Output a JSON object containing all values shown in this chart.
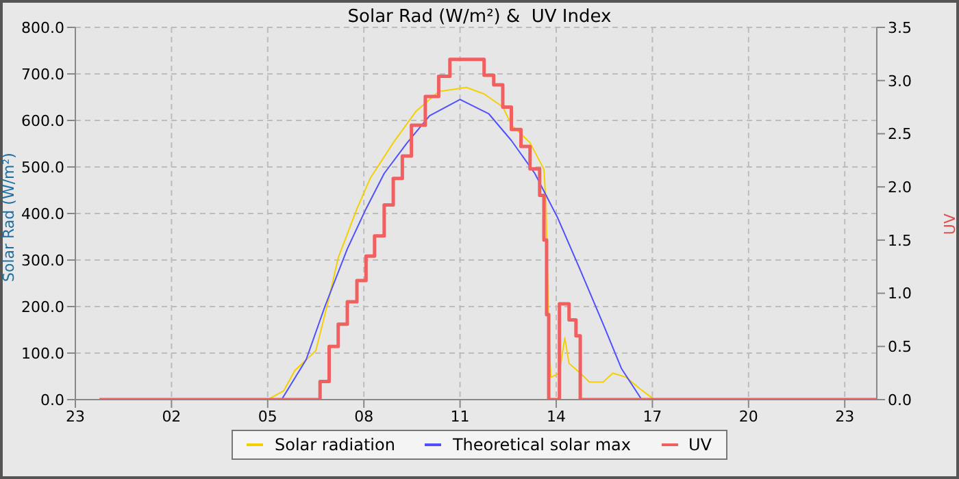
{
  "chart_data": {
    "type": "line",
    "title": "Solar Rad (W/m²) &  UV Index",
    "ylabel": "Solar Rad (W/m²)",
    "y2label": "UV",
    "xlim": [
      "--05-31T23:00",
      "--06-02T00:00"
    ],
    "xticks": [
      {
        "value": "--05-31T23:00",
        "label": "23"
      },
      {
        "value": "--06-01T02:00",
        "label": "02"
      },
      {
        "value": "--06-01T05:00",
        "label": "05"
      },
      {
        "value": "--06-01T08:00",
        "label": "08"
      },
      {
        "value": "--06-01T11:00",
        "label": "11"
      },
      {
        "value": "--06-01T14:00",
        "label": "14"
      },
      {
        "value": "--06-01T17:00",
        "label": "17"
      },
      {
        "value": "--06-01T20:00",
        "label": "20"
      },
      {
        "value": "--06-01T23:00",
        "label": "23"
      }
    ],
    "ylim": [
      0,
      800
    ],
    "yticks": [
      {
        "value": 0,
        "label": "0.0"
      },
      {
        "value": 100,
        "label": "100.0"
      },
      {
        "value": 200,
        "label": "200.0"
      },
      {
        "value": 300,
        "label": "300.0"
      },
      {
        "value": 400,
        "label": "400.0"
      },
      {
        "value": 500,
        "label": "500.0"
      },
      {
        "value": 600,
        "label": "600.0"
      },
      {
        "value": 700,
        "label": "700.0"
      },
      {
        "value": 800,
        "label": "800.0"
      }
    ],
    "y2lim": [
      0,
      3.5
    ],
    "y2ticks": [
      {
        "value": 0,
        "label": "0.0"
      },
      {
        "value": 0.5,
        "label": "0.5"
      },
      {
        "value": 1,
        "label": "1.0"
      },
      {
        "value": 1.5,
        "label": "1.5"
      },
      {
        "value": 2,
        "label": "2.0"
      },
      {
        "value": 2.5,
        "label": "2.5"
      },
      {
        "value": 3,
        "label": "3.0"
      },
      {
        "value": 3.5,
        "label": "3.5"
      }
    ],
    "grid": true,
    "legend": "bottom",
    "marker": "none",
    "line_style": "solid",
    "series": [
      {
        "name": "Solar radiation",
        "color": "#f5d000",
        "x": [
          "--05-31T23:45",
          "--06-01T05:00",
          "--06-01T05:30",
          "--06-01T05:51",
          "--06-01T06:30",
          "--06-01T06:55",
          "--06-01T07:12",
          "--06-01T07:47",
          "--06-01T08:12",
          "--06-01T08:55",
          "--06-01T09:37",
          "--06-01T10:20",
          "--06-01T11:12",
          "--06-01T11:45",
          "--06-01T12:20",
          "--06-01T12:36",
          "--06-01T13:11",
          "--06-01T13:37",
          "--06-01T13:41",
          "--06-01T13:46",
          "--06-01T13:50",
          "--06-01T14:06",
          "--06-01T14:16",
          "--06-01T14:24",
          "--06-01T14:45",
          "--06-01T15:02",
          "--06-01T15:28",
          "--06-01T15:46",
          "--06-01T16:11",
          "--06-01T16:36",
          "--06-01T16:58",
          "--06-01T17:06",
          "--06-02T00:00"
        ],
        "values": [
          0,
          0,
          19,
          63,
          105,
          219,
          305,
          410,
          476,
          552,
          619,
          662,
          671,
          657,
          629,
          591,
          552,
          495,
          419,
          143,
          48,
          57,
          133,
          78,
          57,
          38,
          38,
          57,
          48,
          24,
          5,
          0,
          0
        ]
      },
      {
        "name": "Theoretical solar max",
        "color": "#5050ff",
        "x": [
          "--05-31T23:45",
          "--06-01T05:26",
          "--06-01T06:12",
          "--06-01T06:47",
          "--06-01T07:29",
          "--06-01T08:04",
          "--06-01T08:38",
          "--06-01T09:21",
          "--06-01T10:03",
          "--06-01T11:00",
          "--06-01T11:54",
          "--06-01T12:36",
          "--06-01T13:20",
          "--06-01T14:03",
          "--06-01T14:46",
          "--06-01T15:28",
          "--06-01T16:02",
          "--06-01T16:40",
          "--06-02T00:00"
        ],
        "values": [
          0,
          0,
          86,
          200,
          324,
          410,
          486,
          552,
          610,
          645,
          614,
          557,
          486,
          390,
          276,
          162,
          67,
          0,
          0
        ]
      },
      {
        "name": "UV",
        "type": "step",
        "axis": "y2",
        "color": "#f06060",
        "x": [
          "--05-31T23:45",
          "--06-01T06:32",
          "--06-01T06:38",
          "--06-01T06:55",
          "--06-01T07:12",
          "--06-01T07:29",
          "--06-01T07:47",
          "--06-01T08:04",
          "--06-01T08:20",
          "--06-01T08:38",
          "--06-01T08:55",
          "--06-01T09:12",
          "--06-01T09:29",
          "--06-01T09:55",
          "--06-01T10:20",
          "--06-01T10:41",
          "--06-01T11:45",
          "--06-01T12:03",
          "--06-01T12:20",
          "--06-01T12:36",
          "--06-01T12:54",
          "--06-01T13:11",
          "--06-01T13:29",
          "--06-01T13:37",
          "--06-01T13:42",
          "--06-01T13:46",
          "--06-01T14:06",
          "--06-01T14:24",
          "--06-01T14:37",
          "--06-01T14:45",
          "--06-02T00:00"
        ],
        "values": [
          0,
          0,
          0.17,
          0.5,
          0.71,
          0.92,
          1.12,
          1.35,
          1.54,
          1.83,
          2.08,
          2.29,
          2.58,
          2.85,
          3.04,
          3.2,
          3.05,
          2.96,
          2.75,
          2.54,
          2.38,
          2.17,
          1.92,
          1.5,
          0.8,
          0,
          0.9,
          0.75,
          0.6,
          0,
          0
        ]
      }
    ]
  }
}
